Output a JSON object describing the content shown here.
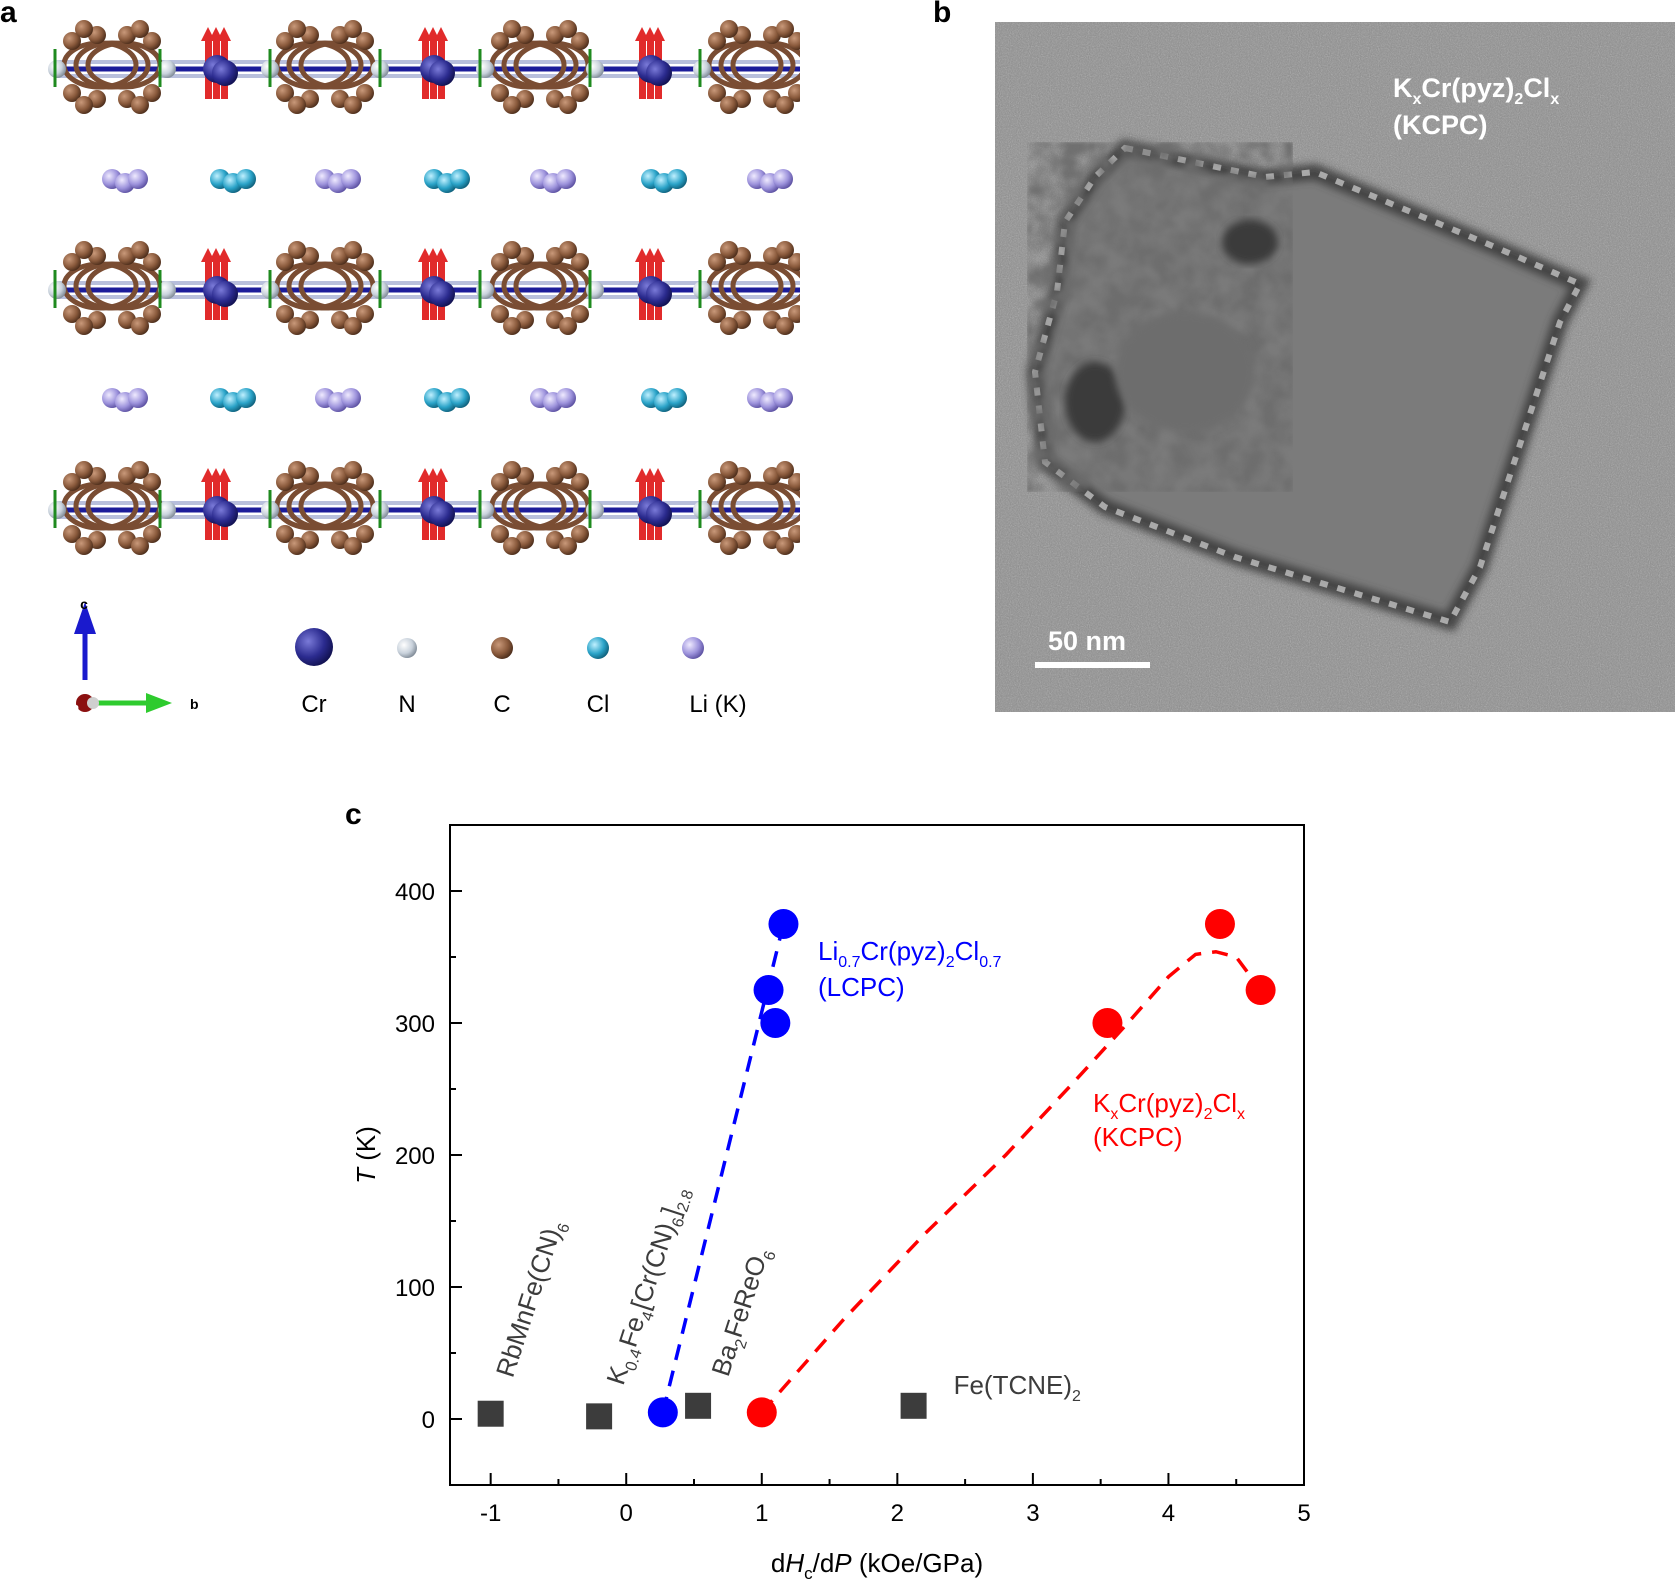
{
  "panel_a": {
    "label": "a",
    "legend": [
      {
        "name": "Cr",
        "label": "Cr",
        "color": "#2b2b8f"
      },
      {
        "name": "N",
        "label": "N",
        "color": "#c9d2dc"
      },
      {
        "name": "C",
        "label": "C",
        "color": "#8a5a3c"
      },
      {
        "name": "Cl",
        "label": "Cl",
        "color": "#2aa3c8"
      },
      {
        "name": "Li",
        "label": "Li (K)",
        "color": "#9d93dc"
      }
    ],
    "axes": {
      "c": "c",
      "b": "b",
      "a": "a"
    }
  },
  "panel_b": {
    "label": "b",
    "formula": {
      "p1": "K",
      "s1": "x",
      "p2": "Cr(pyz)",
      "s2": "2",
      "p3": "Cl",
      "s3": "x"
    },
    "abbr": "(KCPC)",
    "scalebar": "50 nm"
  },
  "panel_c": {
    "label": "c"
  },
  "chart_data": {
    "type": "scatter",
    "title": "",
    "xlabel": {
      "p1": "d",
      "i1": "H",
      "s1": "c",
      "p2": "/d",
      "i2": "P",
      "p3": " (kOe/GPa)"
    },
    "ylabel": {
      "i": "T",
      "p": " (K)"
    },
    "xlim": [
      -1.3,
      5
    ],
    "ylim": [
      -50,
      450
    ],
    "xticks": [
      -1,
      0,
      1,
      2,
      3,
      4,
      5
    ],
    "yticks": [
      0,
      100,
      200,
      300,
      400
    ],
    "series": [
      {
        "color": "#0000ff",
        "marker": "circle",
        "points": [
          [
            0.27,
            5
          ],
          [
            1.1,
            300
          ],
          [
            1.05,
            325
          ],
          [
            1.16,
            375
          ]
        ],
        "fit": [
          [
            0.27,
            5
          ],
          [
            1.16,
            375
          ]
        ],
        "label": {
          "p1": "Li",
          "s1": "0.7",
          "p2": "Cr(pyz)",
          "s2": "2",
          "p3": "Cl",
          "s3": "0.7",
          "line2": "(LCPC)"
        }
      },
      {
        "color": "#ff0000",
        "marker": "circle",
        "points": [
          [
            1.0,
            5
          ],
          [
            3.55,
            300
          ],
          [
            4.38,
            375
          ],
          [
            4.68,
            325
          ]
        ],
        "fit": [
          [
            1.0,
            5
          ],
          [
            1.6,
            75
          ],
          [
            2.2,
            140
          ],
          [
            2.8,
            200
          ],
          [
            3.3,
            255
          ],
          [
            3.7,
            300
          ],
          [
            4.0,
            335
          ],
          [
            4.2,
            352
          ],
          [
            4.35,
            354
          ],
          [
            4.5,
            350
          ],
          [
            4.68,
            325
          ]
        ],
        "label": {
          "p1": "K",
          "s1": "x",
          "p2": "Cr(pyz)",
          "s2": "2",
          "p3": "Cl",
          "s3": "x",
          "line2": "(KCPC)"
        }
      }
    ],
    "reference_points": [
      {
        "x": -1.0,
        "y": 4,
        "text": "RbMnFe(CN)",
        "sub": "6"
      },
      {
        "x": -0.2,
        "y": 2,
        "text_parts": [
          "K",
          "0.4",
          "Fe",
          "4",
          "[Cr(CN)",
          "6",
          "]",
          "2.8"
        ]
      },
      {
        "x": 0.53,
        "y": 10,
        "text_parts": [
          "Ba",
          "2",
          "FeReO",
          "6"
        ]
      },
      {
        "x": 2.12,
        "y": 10,
        "text": "Fe(TCNE)",
        "sub": "2"
      }
    ],
    "reference_color": "#3c3c3c"
  }
}
